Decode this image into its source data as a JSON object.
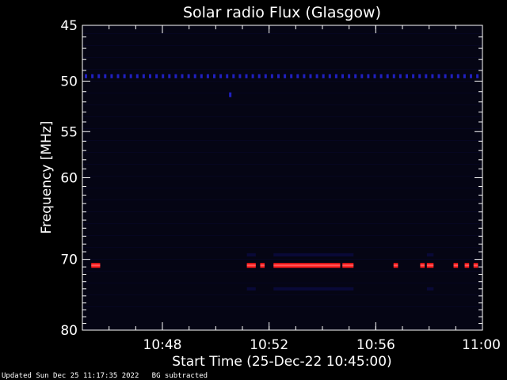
{
  "chart_data": {
    "type": "heatmap",
    "title": "Solar radio Flux (Glasgow)",
    "xlabel": "Start Time (25-Dec-22 10:45:00)",
    "ylabel": "Frequency [MHz]",
    "x_unit": "minutes",
    "xlim": [
      "10:45",
      "11:00"
    ],
    "ylim": [
      80,
      45
    ],
    "y_scale": "log",
    "x_ticks": [
      "10:48",
      "10:52",
      "10:56",
      "11:00"
    ],
    "y_ticks": [
      45,
      50,
      55,
      60,
      70,
      80
    ],
    "grid": false,
    "colors": {
      "background": "#000000",
      "plot_background": "#050514",
      "low_level": "#0a0a3a",
      "mid_level": "#2020c0",
      "high_level": "#ff1a1a",
      "peak_level": "#ff8080"
    },
    "bands": [
      {
        "name": "49.5 MHz dotted line",
        "frequency": 49.5,
        "start": "10:45",
        "end": "11:00",
        "pattern": "dotted",
        "intensity": "mid"
      },
      {
        "name": "51.3 MHz spot",
        "frequency": 51.3,
        "start": "10:50:30",
        "end": "10:50:40",
        "pattern": "spot",
        "intensity": "mid"
      },
      {
        "name": "70.8 MHz emission",
        "frequency": 70.8,
        "segments": [
          {
            "start": "10:45:20",
            "end": "10:45:40",
            "intensity": "high"
          },
          {
            "start": "10:51:10",
            "end": "10:51:30",
            "intensity": "high"
          },
          {
            "start": "10:51:40",
            "end": "10:51:50",
            "intensity": "high"
          },
          {
            "start": "10:52:10",
            "end": "10:54:40",
            "intensity": "high"
          },
          {
            "start": "10:54:45",
            "end": "10:55:10",
            "intensity": "high"
          },
          {
            "start": "10:56:40",
            "end": "10:56:50",
            "intensity": "high"
          },
          {
            "start": "10:57:40",
            "end": "10:57:50",
            "intensity": "high"
          },
          {
            "start": "10:57:55",
            "end": "10:58:10",
            "intensity": "high"
          },
          {
            "start": "10:58:55",
            "end": "10:59:05",
            "intensity": "high"
          },
          {
            "start": "10:59:20",
            "end": "10:59:30",
            "intensity": "high"
          },
          {
            "start": "10:59:40",
            "end": "10:59:50",
            "intensity": "high"
          }
        ]
      },
      {
        "name": "69.4 MHz faint band",
        "frequency": 69.4,
        "segments": [
          {
            "start": "10:51:10",
            "end": "10:51:30",
            "intensity": "low"
          },
          {
            "start": "10:52:10",
            "end": "10:55:10",
            "intensity": "low"
          },
          {
            "start": "10:57:55",
            "end": "10:58:10",
            "intensity": "low"
          }
        ]
      },
      {
        "name": "74 MHz faint band",
        "frequency": 74.0,
        "segments": [
          {
            "start": "10:51:10",
            "end": "10:51:30",
            "intensity": "low"
          },
          {
            "start": "10:52:10",
            "end": "10:55:10",
            "intensity": "low"
          },
          {
            "start": "10:57:55",
            "end": "10:58:10",
            "intensity": "low"
          }
        ]
      }
    ]
  },
  "footer": {
    "updated": "Updated Sun Dec 25 11:17:35 2022",
    "note": "BG subtracted"
  }
}
